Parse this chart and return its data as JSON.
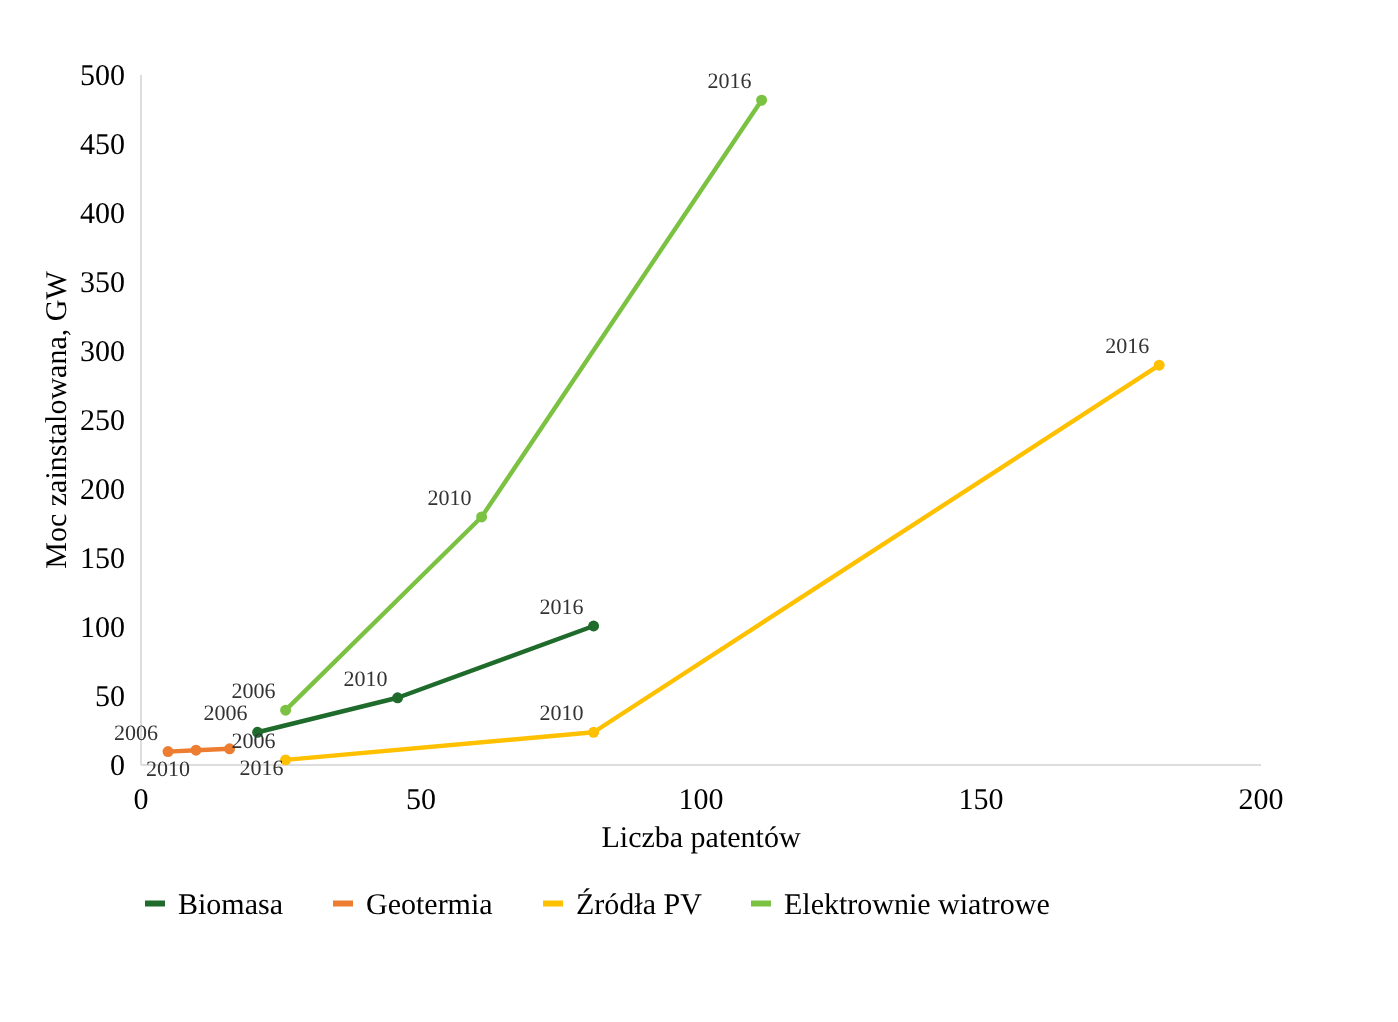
{
  "chart_data": {
    "type": "line",
    "xlabel": "Liczba patentów",
    "ylabel": "Moc zainstalowana, GW",
    "xlim": [
      0,
      200
    ],
    "xticks": [
      0,
      50,
      100,
      150,
      200
    ],
    "ylim": [
      0,
      500
    ],
    "yticks": [
      0,
      50,
      100,
      150,
      200,
      250,
      300,
      350,
      400,
      450,
      500
    ],
    "grid": false,
    "legend": "bottom",
    "marker": "circle",
    "line_style": "solid",
    "series": [
      {
        "name": "Biomasa",
        "color": "#1f6b2c",
        "x": [
          21,
          46,
          81
        ],
        "values": [
          23,
          48,
          100
        ]
      },
      {
        "name": "Geotermia",
        "color": "#ed7d31",
        "x": [
          5,
          10,
          16
        ],
        "values": [
          9,
          10,
          11
        ]
      },
      {
        "name": "Źródła PV",
        "color": "#ffc000",
        "x": [
          26,
          81,
          182
        ],
        "values": [
          3,
          23,
          289
        ]
      },
      {
        "name": "Elektrownie wiatrowe",
        "color": "#7cc242",
        "x": [
          26,
          61,
          111
        ],
        "values": [
          39,
          179,
          481
        ]
      }
    ],
    "annotations": [
      {
        "text": "2006",
        "x": 26,
        "y": 39
      },
      {
        "text": "2010",
        "x": 61,
        "y": 179
      },
      {
        "text": "2016",
        "x": 111,
        "y": 481
      },
      {
        "text": "2006",
        "x": 21,
        "y": 23
      },
      {
        "text": "2010",
        "x": 46,
        "y": 48
      },
      {
        "text": "2016",
        "x": 81,
        "y": 100
      },
      {
        "text": "2006",
        "x": 5,
        "y": 9
      },
      {
        "text": "2010",
        "x": 10,
        "y": 10
      },
      {
        "text": "2016",
        "x": 16,
        "y": 11
      },
      {
        "text": "2006",
        "x": 26,
        "y": 3
      },
      {
        "text": "2010",
        "x": 81,
        "y": 23
      },
      {
        "text": "2016",
        "x": 182,
        "y": 289
      }
    ]
  }
}
